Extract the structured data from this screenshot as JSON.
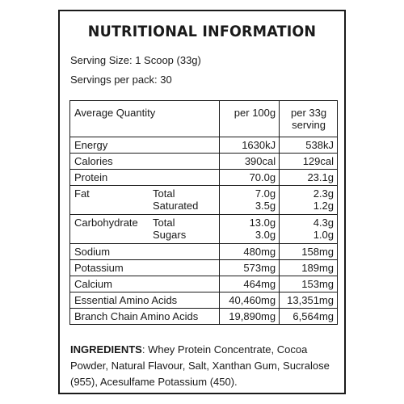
{
  "title": "NUTRITIONAL INFORMATION",
  "serving_size": "Serving Size: 1 Scoop (33g)",
  "servings_per_pack": "Servings per pack: 30",
  "table": {
    "headers": {
      "quantity": "Average Quantity",
      "per100": "per 100g",
      "per_serving_line1": "per 33g",
      "per_serving_line2": "serving"
    },
    "rows": [
      {
        "name": "Energy",
        "per100": "1630kJ",
        "serving": "538kJ"
      },
      {
        "name": "Calories",
        "per100": "390cal",
        "serving": "129cal"
      },
      {
        "name": "Protein",
        "per100": "70.0g",
        "serving": "23.1g"
      },
      {
        "name": "Fat",
        "sub1": "Total",
        "sub2": "Saturated",
        "per100_1": "7.0g",
        "per100_2": "3.5g",
        "serving_1": "2.3g",
        "serving_2": "1.2g"
      },
      {
        "name": "Carbohydrate",
        "sub1": "Total",
        "sub2": "Sugars",
        "per100_1": "13.0g",
        "per100_2": "3.0g",
        "serving_1": "4.3g",
        "serving_2": "1.0g"
      },
      {
        "name": "Sodium",
        "per100": "480mg",
        "serving": "158mg"
      },
      {
        "name": "Potassium",
        "per100": "573mg",
        "serving": "189mg"
      },
      {
        "name": "Calcium",
        "per100": "464mg",
        "serving": "153mg"
      },
      {
        "name": "Essential Amino Acids",
        "per100": "40,460mg",
        "serving": "13,351mg"
      },
      {
        "name": "Branch Chain Amino Acids",
        "per100": "19,890mg",
        "serving": "6,564mg"
      }
    ]
  },
  "ingredients": {
    "label": "INGREDIENTS",
    "text": ": Whey Protein Concentrate, Cocoa Powder, Natural Flavour, Salt, Xanthan Gum, Sucralose (955), Acesulfame Potassium (450)."
  }
}
